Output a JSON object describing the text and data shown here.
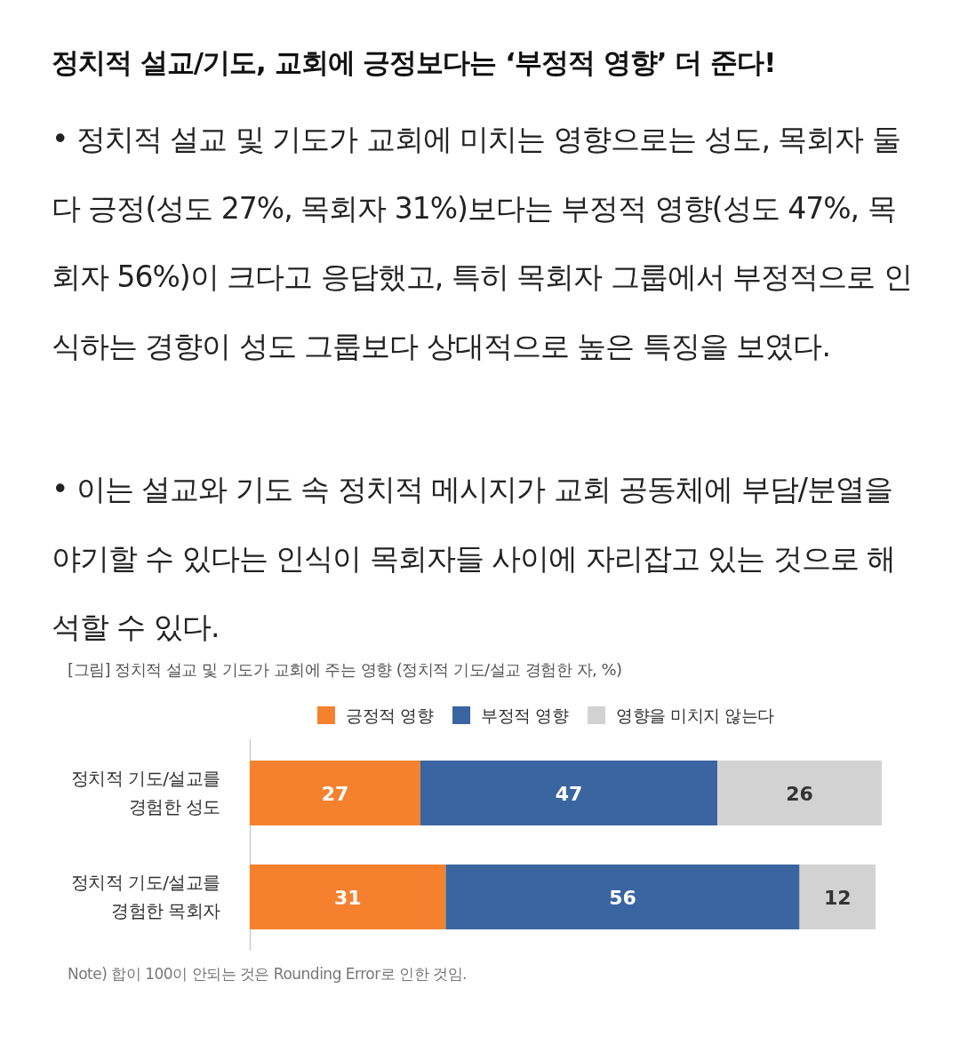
{
  "chart_data": {
    "type": "bar",
    "orientation": "horizontal",
    "stacked": true,
    "data_labels": true,
    "legend": "top",
    "title": "정치적 설교/기도, 교회에 긍정보다는 ‘부정적 영향’ 더 준다!",
    "subtitle": "[그림] 정치적 설교 및 기도가 교회에 주는 영향 (정치적 기도/설교 경험한 자, %)",
    "annotations": [
      "• 정치적 설교 및 기도가 교회에 미치는 영향으로는 성도, 목회자 둘 다 긍정(성도 27%, 목회자 31%)보다는 부정적 영향(성도 47%, 목회자 56%)이 크다고 응답했고, 특히 목회자 그룹에서 부정적으로 인식하는 경향이 성도 그룹보다 상대적으로 높은 특징을 보였다.",
      "• 이는 설교와 기도 속 정치적 메시지가 교회 공동체에 부담/분열을 야기할 수 있다는 인식이 목회자들 사이에 자리잡고 있는 것으로 해석할 수 있다.",
      "Note) 합이 100이 안되는 것은 Rounding Error로 인한 것임."
    ],
    "categories": [
      "정치적 기도/설교를 경험한 성도",
      "정치적 기도/설교를 경험한 목회자"
    ],
    "series": [
      {
        "name": "긍정적 영향",
        "color": "#f5812f",
        "values": [
          27,
          31
        ]
      },
      {
        "name": "부정적 영향",
        "color": "#3a65a0",
        "values": [
          47,
          56
        ]
      },
      {
        "name": "영향을 미치지 않는다",
        "color": "#d2d2d2",
        "values": [
          26,
          12
        ]
      }
    ]
  }
}
